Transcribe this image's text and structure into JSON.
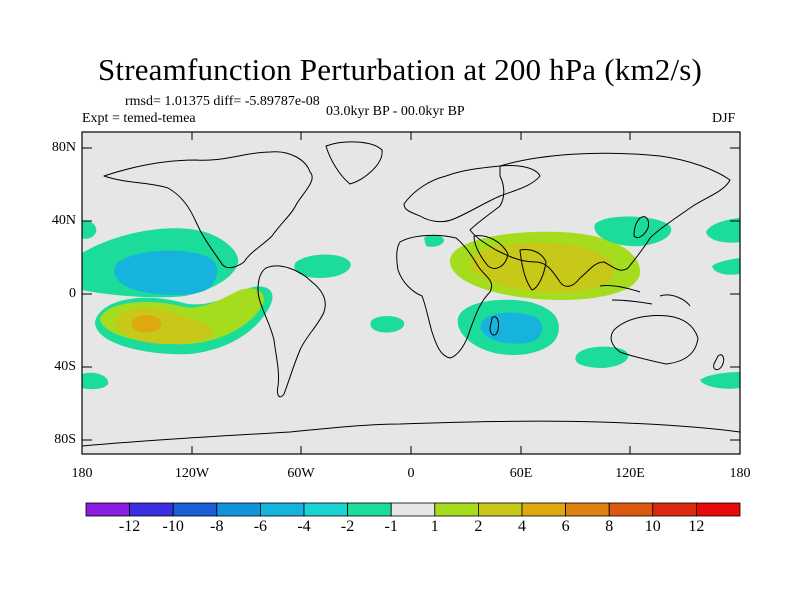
{
  "header": {
    "title": "Streamfunction Perturbation at 200 hPa (km2/s)",
    "stats": "rmsd= 1.01375 diff= -5.89787e-08",
    "experiment": "Expt = temed-temea",
    "period": "03.0kyr BP - 00.0kyr BP",
    "season": "DJF"
  },
  "axes": {
    "lat_labels": [
      "80N",
      "40N",
      "0",
      "40S",
      "80S"
    ],
    "lon_labels": [
      "180",
      "120W",
      "60W",
      "0",
      "60E",
      "120E",
      "180"
    ]
  },
  "colorbar": {
    "labels": [
      "-12",
      "-10",
      "-8",
      "-6",
      "-4",
      "-2",
      "-1",
      "1",
      "2",
      "4",
      "6",
      "8",
      "10",
      "12"
    ],
    "colors": [
      "#8a1ee0",
      "#3a2ee0",
      "#1a5ed8",
      "#1294dc",
      "#16b4dc",
      "#1ad2d2",
      "#1cdc9a",
      "#e6e6e6",
      "#a6dc1e",
      "#c8c818",
      "#dcaa10",
      "#dc8210",
      "#dc5a10",
      "#dc2a10",
      "#e60a0a"
    ]
  },
  "chart_data": {
    "type": "filled-contour-map",
    "projection": "cylindrical-equidistant",
    "region": {
      "lon": [
        -180,
        180
      ],
      "lat": [
        -90,
        90
      ]
    },
    "variable": "Streamfunction Perturbation at 200 hPa",
    "units": "km2/s",
    "levels": [
      -12,
      -10,
      -8,
      -6,
      -4,
      -2,
      -1,
      1,
      2,
      4,
      6,
      8,
      10,
      12
    ],
    "features": [
      {
        "name": "north-pacific-negative",
        "center": [
          -135,
          12
        ],
        "extreme": -4
      },
      {
        "name": "south-pacific-positive",
        "center": [
          -145,
          -15
        ],
        "extreme": 6
      },
      {
        "name": "asia-positive",
        "center": [
          75,
          18
        ],
        "extreme": 4
      },
      {
        "name": "south-indian-ocean-negative",
        "center": [
          65,
          -18
        ],
        "extreme": -4
      },
      {
        "name": "west-pacific-negative",
        "center": [
          130,
          40
        ],
        "extreme": -2
      },
      {
        "name": "south-australia-negative",
        "center": [
          115,
          -30
        ],
        "extreme": -2
      }
    ]
  }
}
